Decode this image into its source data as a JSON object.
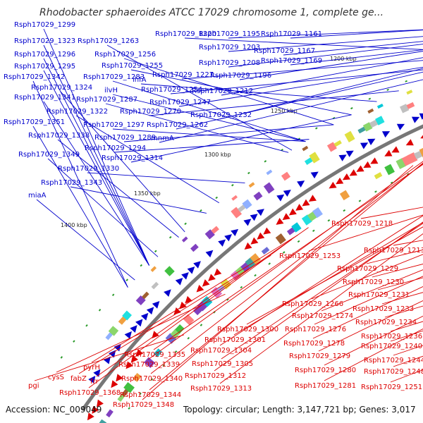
{
  "title": "Rhodobacter sphaeroides ATCC 17029 chromosome 1, complete ge...",
  "footer": {
    "accession": "Accession: NC_009049",
    "summary": "Topology: circular; Length: 3,147,721 bp; Genes: 3,017"
  },
  "scale_labels": [
    "1200 kbp",
    "1250 kbp",
    "1300 kbp",
    "1350 kbp",
    "1400 kbp"
  ],
  "colors": {
    "plus_strand": "#0000cc",
    "minus_strand": "#dd0000",
    "backbone": "#777777"
  },
  "plus_labels": [
    "Rsph17029_1299",
    "Rsph17029_1323",
    "Rsph17029_1263",
    "Rsph17029_1220",
    "Rsph17029_1195",
    "Rsph17029_1161",
    "Rsph17029_1296",
    "Rsph17029_1256",
    "Rsph17029_1203",
    "Rsph17029_1167",
    "Rsph17029_1295",
    "Rsph17029_1255",
    "Rsph17029_1208",
    "Rsph17029_1169",
    "Rsph17029_1342",
    "Rsph17029_1283",
    "Rsph17029_1227",
    "Rsph17029_1196",
    "ihfA",
    "Rsph17029_1324",
    "ilvH",
    "Rsph17029_1254",
    "Rsph17029_1212",
    "Rsph17029_1341",
    "Rsph17029_1287",
    "Rsph17029_1247",
    "Rsph17029_1322",
    "Rsph17029_1270",
    "Rsph17029_1232",
    "Rsph17029_1351",
    "Rsph17029_1297",
    "Rsph17029_1262",
    "Rsph17029_1338",
    "Rsph17029_1289",
    "mnmA",
    "Rsph17029_1294",
    "Rsph17029_1349",
    "Rsph17029_1314",
    "Rsph17029_1330",
    "Rsph17029_1343",
    "miaA"
  ],
  "minus_labels": [
    "Rsph17029_1218",
    "Rsph17029_1213",
    "Rsph17029_1253",
    "Rsph17029_1229",
    "Rsph17029_1230",
    "Rsph17029_1231",
    "Rsph17029_1266",
    "Rsph17029_1233",
    "Rsph17029_1274",
    "Rsph17029_1234",
    "Rsph17029_1300",
    "Rsph17029_1276",
    "Rsph17029_1236",
    "Rsph17029_1301",
    "Rsph17029_1278",
    "Rsph17029_1240",
    "Rsph17029_1304",
    "Rsph17029_1335",
    "Rsph17029_1279",
    "Rsph17029_1244",
    "Rsph17029_1339",
    "Rsph17029_1305",
    "Rsph17029_1280",
    "Rsph17029_1248",
    "pyrH",
    "Rsph17029_1340",
    "Rsph17029_1312",
    "Rsph17029_1281",
    "Rsph17029_1251",
    "cysS",
    "fabZ",
    "frr",
    "pgi",
    "Rsph17029_1368",
    "Rsph17029_1313",
    "Rsph17029_1344",
    "Rsph17029_1348"
  ]
}
